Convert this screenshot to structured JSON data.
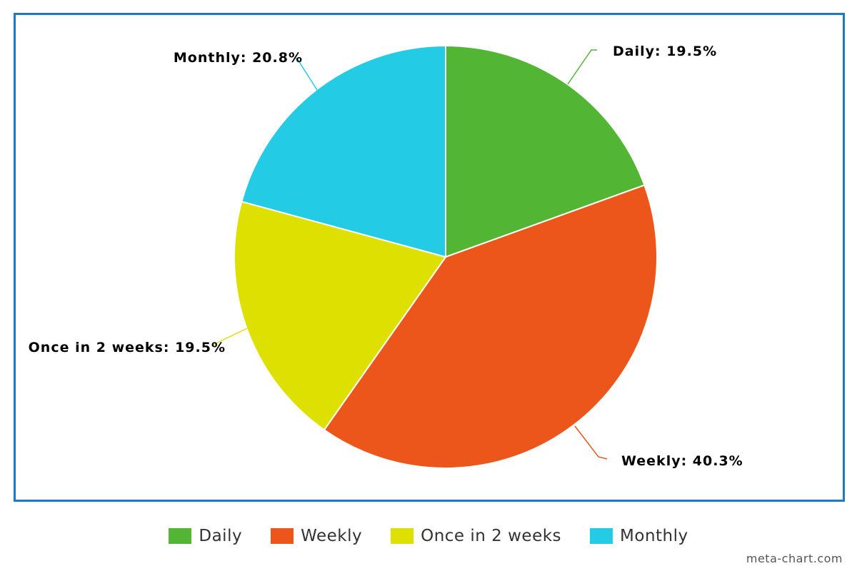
{
  "chart_data": {
    "type": "pie",
    "categories": [
      "Daily",
      "Weekly",
      "Once in 2 weeks",
      "Monthly"
    ],
    "values": [
      19.5,
      40.3,
      19.5,
      20.8
    ],
    "colors": [
      "#52b534",
      "#ed561b",
      "#dde000",
      "#24cbe5"
    ],
    "data_labels": [
      "Daily: 19.5%",
      "Weekly: 40.3%",
      "Once in 2 weeks: 19.5%",
      "Monthly: 20.8%"
    ],
    "legend_position": "bottom",
    "title": ""
  },
  "legend": {
    "items": [
      {
        "label": "Daily",
        "color": "#52b534"
      },
      {
        "label": "Weekly",
        "color": "#ed561b"
      },
      {
        "label": "Once in 2 weeks",
        "color": "#dde000"
      },
      {
        "label": "Monthly",
        "color": "#24cbe5"
      }
    ]
  },
  "credit": "meta-chart.com",
  "frame_color": "#1a7bc9"
}
